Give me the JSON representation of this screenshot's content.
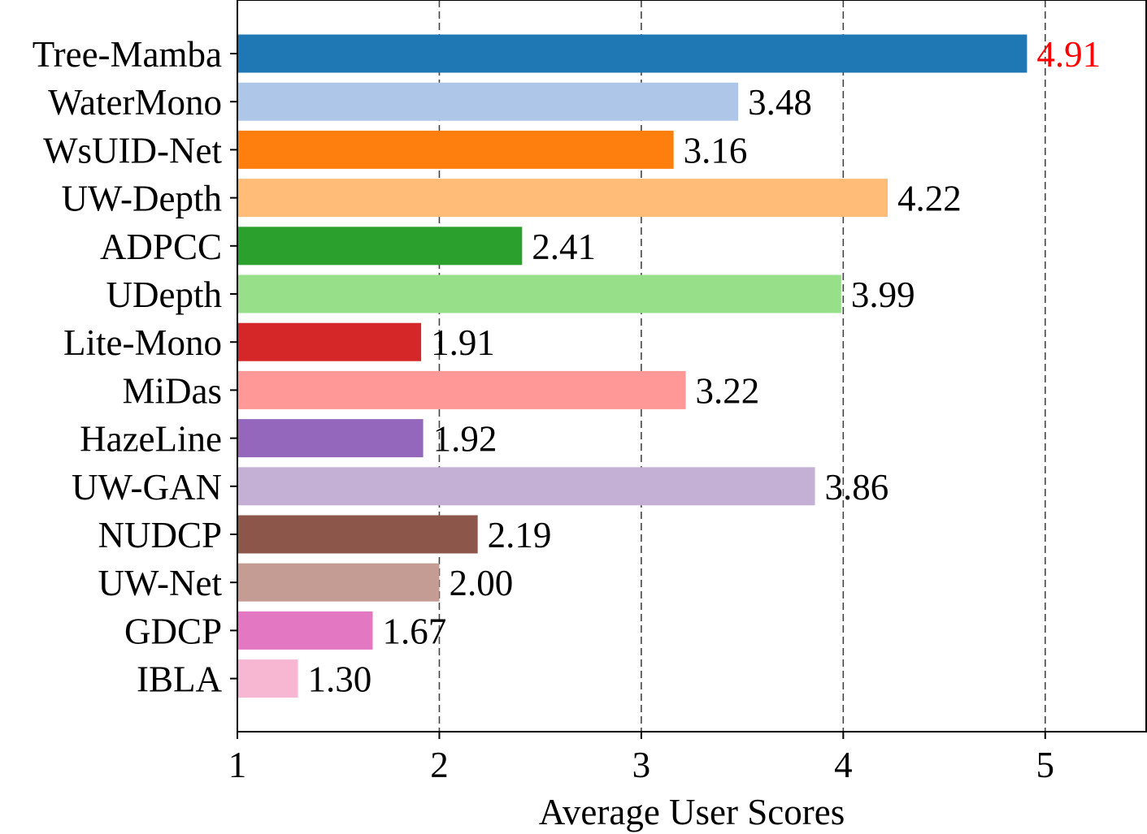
{
  "chart_data": {
    "type": "bar",
    "orientation": "horizontal",
    "title": "",
    "xlabel": "Average User Scores",
    "ylabel": "",
    "xlim": [
      1,
      5.5
    ],
    "xticks": [
      1,
      2,
      3,
      4,
      5
    ],
    "xtick_labels": [
      "1",
      "2",
      "3",
      "4",
      "5"
    ],
    "grid": "x-dashed",
    "categories": [
      "Tree-Mamba",
      "WaterMono",
      "WsUID-Net",
      "UW-Depth",
      "ADPCC",
      "UDepth",
      "Lite-Mono",
      "MiDas",
      "HazeLine",
      "UW-GAN",
      "NUDCP",
      "UW-Net",
      "GDCP",
      "IBLA"
    ],
    "values": [
      4.91,
      3.48,
      3.16,
      4.22,
      2.41,
      3.99,
      1.91,
      3.22,
      1.92,
      3.86,
      2.19,
      2.0,
      1.67,
      1.3
    ],
    "value_labels": [
      "4.91",
      "3.48",
      "3.16",
      "4.22",
      "2.41",
      "3.99",
      "1.91",
      "3.22",
      "1.92",
      "3.86",
      "2.19",
      "2.00",
      "1.67",
      "1.30"
    ],
    "colors": [
      "#1f77b4",
      "#aec7e8",
      "#ff7f0e",
      "#ffbb78",
      "#2ca02c",
      "#98df8a",
      "#d62728",
      "#ff9896",
      "#9467bd",
      "#c5b0d5",
      "#8c564b",
      "#c49c94",
      "#e377c2",
      "#f7b6d2"
    ],
    "value_label_colors": [
      "#ff0000",
      "#000000",
      "#000000",
      "#000000",
      "#000000",
      "#000000",
      "#000000",
      "#000000",
      "#000000",
      "#000000",
      "#000000",
      "#000000",
      "#000000",
      "#000000"
    ]
  }
}
